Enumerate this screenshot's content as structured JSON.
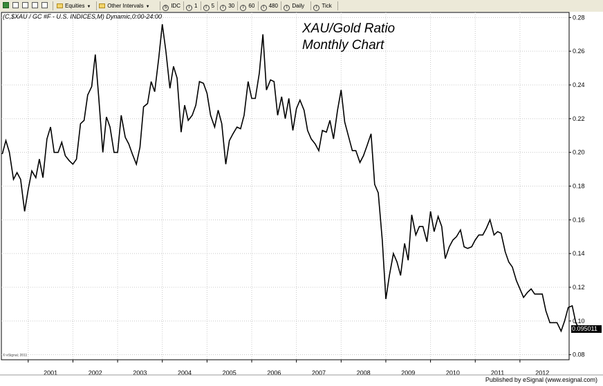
{
  "toolbar": {
    "items": [
      {
        "kind": "folder",
        "label": "Equities",
        "dropdown": true
      },
      {
        "kind": "folder",
        "label": "Other Intervals",
        "dropdown": true
      },
      {
        "kind": "circle",
        "glyph": "S",
        "label": "IDC"
      },
      {
        "kind": "circle",
        "glyph": "I",
        "label": "1"
      },
      {
        "kind": "circle",
        "glyph": "I",
        "label": "5"
      },
      {
        "kind": "circle",
        "glyph": "I",
        "label": "30"
      },
      {
        "kind": "circle",
        "glyph": "I",
        "label": "60"
      },
      {
        "kind": "circle",
        "glyph": "I",
        "label": "480"
      },
      {
        "kind": "circle",
        "glyph": "I",
        "label": "Daily"
      },
      {
        "kind": "circle",
        "glyph": "I",
        "label": "Tick"
      }
    ],
    "tool_icons": [
      "chart-icon",
      "page-icon",
      "page-icon",
      "page-icon",
      "crosshair-icon"
    ]
  },
  "symbol_header": "(C,$XAU / GC #F - U.S. INDICES,M) Dynamic,0:00-24:00",
  "chart_title_line1": "XAU/Gold Ratio",
  "chart_title_line2": "Monthly Chart",
  "watermark": "© eSignal, 2011",
  "footer": "Published by eSignal (www.esignal.com)",
  "colors": {
    "line": "#000000",
    "grid": "#c8c8c8",
    "toolbar": "#ece9d8"
  },
  "chart_data": {
    "type": "line",
    "title": "XAU/Gold Ratio",
    "subtitle": "Monthly Chart",
    "xlabel": "",
    "ylabel": "",
    "x_ticks": [
      "2001",
      "2002",
      "2003",
      "2004",
      "2005",
      "2006",
      "2007",
      "2008",
      "2009",
      "2010",
      "2011",
      "2012"
    ],
    "y_ticks": [
      "0.28",
      "0.26",
      "0.24",
      "0.22",
      "0.20",
      "0.18",
      "0.16",
      "0.14",
      "0.12",
      "0.10",
      "0.08"
    ],
    "ylim": [
      0.077,
      0.283
    ],
    "xlim": [
      2000.4,
      2013.1
    ],
    "grid": true,
    "grid_style": "dotted",
    "y_axis_side": "right",
    "last_value_label": "0.095011",
    "series": [
      {
        "values_time_value_pairs": [
          [
            2000.42,
            0.199
          ],
          [
            2000.5,
            0.207
          ],
          [
            2000.58,
            0.2
          ],
          [
            2000.67,
            0.184
          ],
          [
            2000.75,
            0.188
          ],
          [
            2000.83,
            0.184
          ],
          [
            2000.92,
            0.165
          ],
          [
            2001.0,
            0.178
          ],
          [
            2001.08,
            0.189
          ],
          [
            2001.17,
            0.185
          ],
          [
            2001.25,
            0.196
          ],
          [
            2001.33,
            0.185
          ],
          [
            2001.42,
            0.208
          ],
          [
            2001.5,
            0.215
          ],
          [
            2001.58,
            0.2
          ],
          [
            2001.67,
            0.2
          ],
          [
            2001.75,
            0.206
          ],
          [
            2001.83,
            0.198
          ],
          [
            2001.92,
            0.195
          ],
          [
            2002.0,
            0.193
          ],
          [
            2002.08,
            0.196
          ],
          [
            2002.17,
            0.217
          ],
          [
            2002.25,
            0.219
          ],
          [
            2002.33,
            0.234
          ],
          [
            2002.42,
            0.239
          ],
          [
            2002.5,
            0.258
          ],
          [
            2002.58,
            0.232
          ],
          [
            2002.67,
            0.2
          ],
          [
            2002.75,
            0.221
          ],
          [
            2002.83,
            0.215
          ],
          [
            2002.92,
            0.2
          ],
          [
            2003.0,
            0.2
          ],
          [
            2003.08,
            0.222
          ],
          [
            2003.17,
            0.209
          ],
          [
            2003.25,
            0.205
          ],
          [
            2003.33,
            0.199
          ],
          [
            2003.42,
            0.193
          ],
          [
            2003.5,
            0.203
          ],
          [
            2003.58,
            0.227
          ],
          [
            2003.67,
            0.229
          ],
          [
            2003.75,
            0.242
          ],
          [
            2003.83,
            0.236
          ],
          [
            2003.92,
            0.256
          ],
          [
            2004.0,
            0.276
          ],
          [
            2004.08,
            0.26
          ],
          [
            2004.17,
            0.238
          ],
          [
            2004.25,
            0.251
          ],
          [
            2004.33,
            0.244
          ],
          [
            2004.42,
            0.212
          ],
          [
            2004.5,
            0.228
          ],
          [
            2004.58,
            0.219
          ],
          [
            2004.67,
            0.222
          ],
          [
            2004.75,
            0.228
          ],
          [
            2004.83,
            0.242
          ],
          [
            2004.92,
            0.241
          ],
          [
            2005.0,
            0.235
          ],
          [
            2005.08,
            0.222
          ],
          [
            2005.17,
            0.215
          ],
          [
            2005.25,
            0.225
          ],
          [
            2005.33,
            0.217
          ],
          [
            2005.42,
            0.193
          ],
          [
            2005.5,
            0.207
          ],
          [
            2005.58,
            0.211
          ],
          [
            2005.67,
            0.215
          ],
          [
            2005.75,
            0.214
          ],
          [
            2005.83,
            0.222
          ],
          [
            2005.92,
            0.242
          ],
          [
            2006.0,
            0.232
          ],
          [
            2006.08,
            0.232
          ],
          [
            2006.17,
            0.247
          ],
          [
            2006.25,
            0.27
          ],
          [
            2006.33,
            0.237
          ],
          [
            2006.42,
            0.243
          ],
          [
            2006.5,
            0.242
          ],
          [
            2006.58,
            0.222
          ],
          [
            2006.67,
            0.233
          ],
          [
            2006.75,
            0.22
          ],
          [
            2006.83,
            0.232
          ],
          [
            2006.92,
            0.213
          ],
          [
            2007.0,
            0.226
          ],
          [
            2007.08,
            0.231
          ],
          [
            2007.17,
            0.225
          ],
          [
            2007.25,
            0.213
          ],
          [
            2007.33,
            0.208
          ],
          [
            2007.42,
            0.205
          ],
          [
            2007.5,
            0.201
          ],
          [
            2007.58,
            0.213
          ],
          [
            2007.67,
            0.212
          ],
          [
            2007.75,
            0.219
          ],
          [
            2007.83,
            0.208
          ],
          [
            2007.92,
            0.225
          ],
          [
            2008.0,
            0.237
          ],
          [
            2008.08,
            0.218
          ],
          [
            2008.17,
            0.209
          ],
          [
            2008.25,
            0.201
          ],
          [
            2008.33,
            0.201
          ],
          [
            2008.42,
            0.194
          ],
          [
            2008.5,
            0.198
          ],
          [
            2008.58,
            0.204
          ],
          [
            2008.67,
            0.211
          ],
          [
            2008.75,
            0.181
          ],
          [
            2008.83,
            0.176
          ],
          [
            2008.92,
            0.148
          ],
          [
            2009.0,
            0.113
          ],
          [
            2009.08,
            0.127
          ],
          [
            2009.17,
            0.14
          ],
          [
            2009.25,
            0.135
          ],
          [
            2009.33,
            0.127
          ],
          [
            2009.42,
            0.146
          ],
          [
            2009.5,
            0.136
          ],
          [
            2009.58,
            0.163
          ],
          [
            2009.67,
            0.151
          ],
          [
            2009.75,
            0.156
          ],
          [
            2009.83,
            0.156
          ],
          [
            2009.92,
            0.147
          ],
          [
            2010.0,
            0.165
          ],
          [
            2010.08,
            0.153
          ],
          [
            2010.17,
            0.162
          ],
          [
            2010.25,
            0.156
          ],
          [
            2010.33,
            0.137
          ],
          [
            2010.42,
            0.144
          ],
          [
            2010.5,
            0.148
          ],
          [
            2010.58,
            0.15
          ],
          [
            2010.67,
            0.154
          ],
          [
            2010.75,
            0.144
          ],
          [
            2010.83,
            0.143
          ],
          [
            2010.92,
            0.144
          ],
          [
            2011.0,
            0.148
          ],
          [
            2011.08,
            0.151
          ],
          [
            2011.17,
            0.151
          ],
          [
            2011.25,
            0.155
          ],
          [
            2011.33,
            0.16
          ],
          [
            2011.42,
            0.151
          ],
          [
            2011.5,
            0.153
          ],
          [
            2011.58,
            0.152
          ],
          [
            2011.67,
            0.141
          ],
          [
            2011.75,
            0.135
          ],
          [
            2011.83,
            0.132
          ],
          [
            2011.92,
            0.124
          ],
          [
            2012.0,
            0.119
          ],
          [
            2012.08,
            0.114
          ],
          [
            2012.17,
            0.117
          ],
          [
            2012.25,
            0.119
          ],
          [
            2012.33,
            0.116
          ],
          [
            2012.42,
            0.116
          ],
          [
            2012.5,
            0.116
          ],
          [
            2012.58,
            0.106
          ],
          [
            2012.67,
            0.099
          ],
          [
            2012.75,
            0.099
          ],
          [
            2012.83,
            0.099
          ],
          [
            2012.92,
            0.094
          ],
          [
            2013.0,
            0.1
          ],
          [
            2013.08,
            0.108
          ],
          [
            2013.17,
            0.109
          ],
          [
            2013.25,
            0.099
          ],
          [
            2013.33,
            0.095
          ]
        ]
      }
    ]
  }
}
